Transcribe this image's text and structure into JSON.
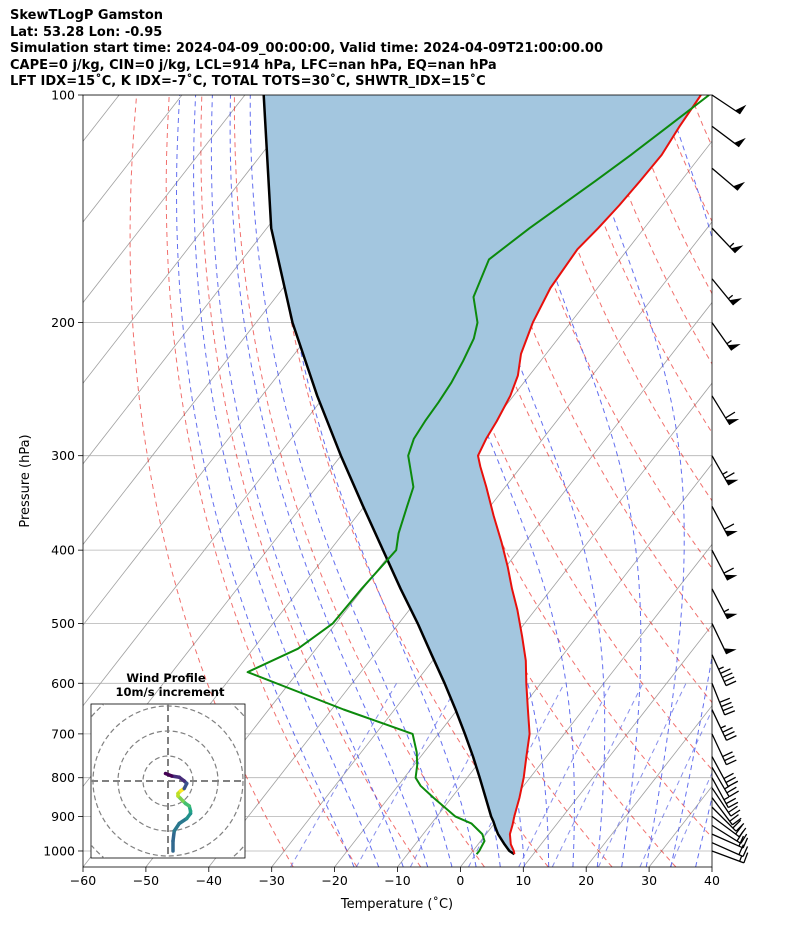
{
  "header": {
    "line1": "SkewTLogP Gamston",
    "line2": "Lat: 53.28   Lon: -0.95",
    "line3": "Simulation start time: 2024-04-09_00:00:00, Valid time: 2024-04-09T21:00:00.00",
    "line4": "CAPE=0 j/kg, CIN=0 j/kg, LCL=914 hPa, LFC=nan hPa, EQ=nan hPa",
    "line5": "LFT IDX=15˚C, K IDX=-7˚C, TOTAL TOTS=30˚C, SHWTR_IDX=15˚C"
  },
  "chart_data": {
    "type": "line",
    "xlabel": "Temperature (˚C)",
    "ylabel": "Pressure (hPa)",
    "xlim": [
      -60,
      40
    ],
    "ylim": [
      1050,
      100
    ],
    "y_scale": "log",
    "skew": true,
    "grid": true,
    "x_ticks": [
      -60,
      -50,
      -40,
      -30,
      -20,
      -10,
      0,
      10,
      20,
      30,
      40
    ],
    "y_ticks": [
      100,
      200,
      300,
      400,
      500,
      600,
      700,
      800,
      900,
      1000
    ],
    "colors": {
      "temperature": "#e8100c",
      "dewpoint": "#0c8a0c",
      "parcel": "#000000",
      "shade": "#a3c6df",
      "dry_adiabat": "#e8100c",
      "moist_adiabat": "#2f3fea",
      "mixing_ratio": "#6a73e6",
      "isotherm": "#a0a0a0",
      "isobar": "#b4b4b4"
    },
    "series": [
      {
        "key": "temperature",
        "p": [
          1010,
          1000,
          980,
          950,
          925,
          900,
          850,
          800,
          750,
          700,
          650,
          600,
          560,
          520,
          480,
          450,
          420,
          390,
          360,
          330,
          310,
          300,
          285,
          270,
          250,
          235,
          220,
          200,
          180,
          160,
          150,
          140,
          130,
          120,
          110,
          100
        ],
        "t": [
          7,
          6.5,
          5.2,
          3.8,
          3.1,
          2.3,
          0.8,
          -1,
          -3.2,
          -5.5,
          -8.8,
          -12.3,
          -15.2,
          -18.8,
          -22.8,
          -26.3,
          -29.8,
          -33.8,
          -38.3,
          -43,
          -46.5,
          -48.2,
          -49,
          -49.5,
          -50.5,
          -51.8,
          -54,
          -56,
          -57.5,
          -58,
          -57.3,
          -56.8,
          -56.5,
          -56.3,
          -57,
          -57.5
        ]
      },
      {
        "key": "dewpoint",
        "p": [
          1010,
          1000,
          970,
          950,
          920,
          900,
          850,
          820,
          800,
          770,
          740,
          700,
          650,
          580,
          540,
          500,
          450,
          400,
          380,
          350,
          330,
          300,
          285,
          270,
          255,
          240,
          225,
          210,
          200,
          185,
          165,
          150,
          130,
          120,
          110,
          100
        ],
        "t": [
          1,
          1,
          0.6,
          -0.6,
          -3.6,
          -7.1,
          -12.9,
          -16.4,
          -18.2,
          -19.5,
          -21.2,
          -24.1,
          -38.1,
          -58,
          -52.9,
          -50.5,
          -50.2,
          -49.5,
          -51.2,
          -53.2,
          -54.6,
          -59.3,
          -60.5,
          -60.9,
          -61.1,
          -61.5,
          -62.3,
          -63.4,
          -64.8,
          -68.6,
          -70.8,
          -68.2,
          -63.6,
          -61.2,
          -58.8,
          -56.2
        ]
      },
      {
        "key": "parcel",
        "p": [
          1010,
          1000,
          980,
          950,
          930,
          914,
          900,
          850,
          800,
          750,
          700,
          650,
          600,
          550,
          500,
          450,
          400,
          350,
          300,
          250,
          200,
          150,
          100
        ],
        "t": [
          7,
          5.8,
          4.2,
          1.9,
          0.6,
          -0.4,
          -1.4,
          -4.6,
          -8,
          -11.7,
          -15.8,
          -20.3,
          -25.3,
          -30.9,
          -37,
          -44,
          -51.6,
          -60.2,
          -70,
          -81.2,
          -94.2,
          -109.3,
          -127
        ]
      }
    ],
    "wind_barbs": [
      {
        "p": 1000,
        "u": -8,
        "v": 3
      },
      {
        "p": 975,
        "u": -9,
        "v": 4
      },
      {
        "p": 950,
        "u": -9,
        "v": 4
      },
      {
        "p": 925,
        "u": -8,
        "v": 5
      },
      {
        "p": 900,
        "u": -8,
        "v": 6
      },
      {
        "p": 875,
        "u": -7,
        "v": 7
      },
      {
        "p": 850,
        "u": -6,
        "v": 8
      },
      {
        "p": 825,
        "u": -6,
        "v": 9
      },
      {
        "p": 800,
        "u": -6,
        "v": 11
      },
      {
        "p": 775,
        "u": -7,
        "v": 12
      },
      {
        "p": 750,
        "u": -7,
        "v": 13
      },
      {
        "p": 700,
        "u": -7,
        "v": 15
      },
      {
        "p": 650,
        "u": -8,
        "v": 17
      },
      {
        "p": 600,
        "u": -8,
        "v": 20
      },
      {
        "p": 550,
        "u": -10,
        "v": 22
      },
      {
        "p": 500,
        "u": -11,
        "v": 23
      },
      {
        "p": 450,
        "u": -13,
        "v": 25
      },
      {
        "p": 400,
        "u": -14,
        "v": 27
      },
      {
        "p": 350,
        "u": -15,
        "v": 28
      },
      {
        "p": 300,
        "u": -16,
        "v": 28
      },
      {
        "p": 250,
        "u": -16,
        "v": 26
      },
      {
        "p": 200,
        "u": -17,
        "v": 24
      },
      {
        "p": 175,
        "u": -18,
        "v": 22
      },
      {
        "p": 150,
        "u": -19,
        "v": 20
      },
      {
        "p": 125,
        "u": -20,
        "v": 17
      },
      {
        "p": 110,
        "u": -20,
        "v": 15
      },
      {
        "p": 100,
        "u": -21,
        "v": 14
      }
    ],
    "hodograph": {
      "title": "Wind Profile",
      "subtitle": "10m/s increment",
      "u": [
        2,
        2,
        2.5,
        4.5,
        7.5,
        9,
        9,
        8.5,
        7,
        6,
        5,
        4,
        4,
        5,
        6.5,
        7.5,
        6.5,
        4.5,
        1.5,
        -1
      ],
      "v": [
        -28,
        -24,
        -20,
        -17,
        -15,
        -13,
        -12,
        -10,
        -9,
        -8,
        -7,
        -6,
        -5,
        -4,
        -3,
        -1,
        0,
        1.5,
        2,
        3
      ],
      "ring_step": 10,
      "rings": 4
    }
  }
}
